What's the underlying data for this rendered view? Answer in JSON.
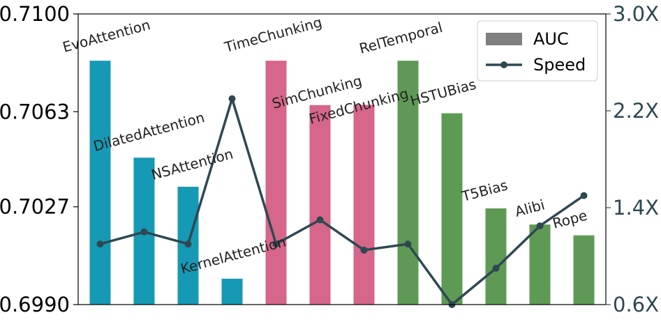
{
  "chart_data": {
    "type": "bar",
    "categories": [
      "EvoAttention",
      "DilatedAttention",
      "NSAttention",
      "KernelAttention",
      "TimeChunking",
      "SimChunking",
      "FixedChunking",
      "RelTemporal",
      "HSTUBias",
      "T5Bias",
      "Alibi",
      "Rope"
    ],
    "series": [
      {
        "name": "AUC",
        "type": "bar",
        "axis": "left",
        "values": [
          0.70823,
          0.70456,
          0.70346,
          0.69998,
          0.70823,
          0.70655,
          0.70656,
          0.70823,
          0.70624,
          0.70264,
          0.70203,
          0.70162
        ]
      },
      {
        "name": "Speed",
        "type": "line",
        "axis": "right",
        "values": [
          1.1,
          1.2,
          1.1,
          2.3,
          1.1,
          1.3,
          1.05,
          1.1,
          0.6,
          0.9,
          1.25,
          1.5
        ]
      }
    ],
    "bar_colors": [
      "#1699b4",
      "#1699b4",
      "#1699b4",
      "#1699b4",
      "#d6668a",
      "#d6668a",
      "#d6668a",
      "#5e9a55",
      "#5e9a55",
      "#5e9a55",
      "#5e9a55",
      "#5e9a55"
    ],
    "line_color": "#2e4852",
    "left_axis": {
      "ylim": [
        0.699,
        0.71
      ],
      "ticks": [
        0.699,
        0.7027,
        0.7063,
        0.71
      ],
      "tick_labels": [
        "0.6990",
        "0.7027",
        "0.7063",
        "0.7100"
      ]
    },
    "right_axis": {
      "ylim": [
        0.6,
        3.0
      ],
      "ticks": [
        0.6,
        1.4,
        2.2,
        3.0
      ],
      "tick_labels": [
        "0.6X",
        "1.4X",
        "2.2X",
        "3.0X"
      ],
      "color": "#2e4852"
    },
    "label_rotation_deg": -15,
    "legend": {
      "placement": "top-right",
      "entries": [
        {
          "label": "AUC",
          "marker": "patch",
          "color": "#7f7f7f"
        },
        {
          "label": "Speed",
          "marker": "line-dot",
          "color": "#2e4852"
        }
      ]
    },
    "title": "",
    "xlabel": "",
    "ylabel": "",
    "grid": false
  }
}
